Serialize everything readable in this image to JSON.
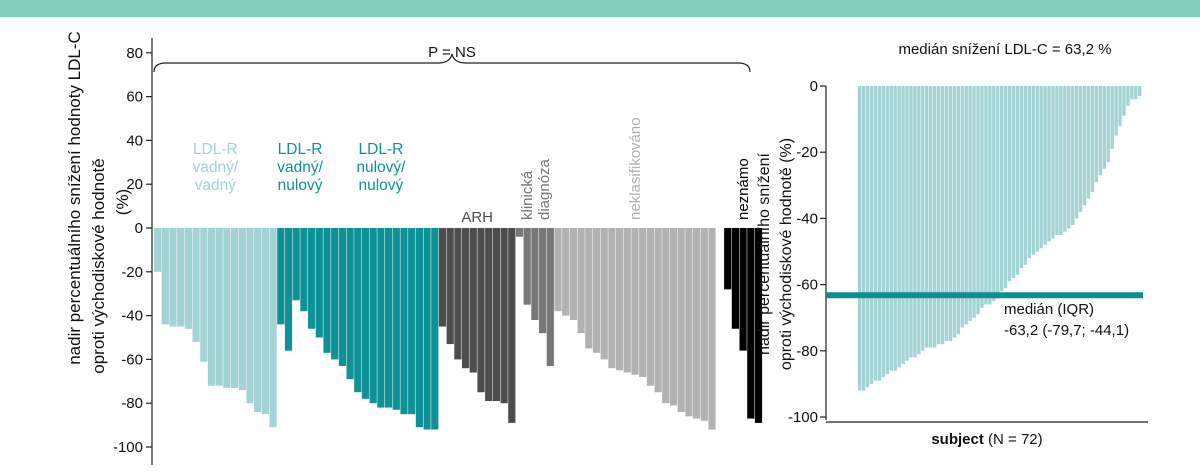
{
  "chart_data": [
    {
      "type": "bar",
      "ylabel_line1": "nadir percentuálního snížení hodnoty LDL-C",
      "ylabel_line2": "oproti východiskové hodnotě",
      "ylabel_line3": "(%)",
      "ylim": [
        -100,
        80
      ],
      "yticks": [
        80,
        60,
        40,
        20,
        0,
        -20,
        -40,
        -60,
        -80,
        -100
      ],
      "significance": "P = NS",
      "grid": false,
      "groups": [
        {
          "label_lines": [
            "LDL-R",
            "vadný/",
            "vadný"
          ],
          "color": "#a3d3d4",
          "values": [
            -20,
            -44,
            -45,
            -45,
            -46,
            -52,
            -61,
            -72,
            -72,
            -73,
            -73,
            -74,
            -80,
            -84,
            -85,
            -91
          ]
        },
        {
          "label_lines": [
            "LDL-R",
            "vadný/",
            "nulový"
          ],
          "color": "#0f9297",
          "values": [
            -44,
            -56,
            -33,
            -38,
            -46,
            -50
          ]
        },
        {
          "label_lines": [
            "LDL-R",
            "nulový/",
            "nulový"
          ],
          "color": "#0f9297",
          "values": [
            -57,
            -60,
            -63,
            -69,
            -75,
            -78,
            -80,
            -82,
            -82,
            -83,
            -85,
            -85,
            -91,
            -92,
            -92
          ]
        },
        {
          "label_lines": [
            "ARH"
          ],
          "color": "#4d4d4d",
          "values": [
            -45,
            -53,
            -60,
            -64,
            -66,
            -75,
            -79,
            -79,
            -80,
            -89
          ]
        },
        {
          "label_lines": [
            "klinická",
            "diagnóza"
          ],
          "color": "#777777",
          "values": [
            -4,
            -35,
            -42,
            -48,
            -63
          ]
        },
        {
          "label_lines": [
            "neklasifikováno"
          ],
          "color": "#b2b2b2",
          "values": [
            -38,
            -40,
            -42,
            -48,
            -55,
            -57,
            -60,
            -64,
            -65,
            -66,
            -67,
            -68,
            -72,
            -75,
            -80,
            -81,
            -84,
            -86,
            -87,
            -88,
            -92
          ]
        },
        {
          "label_lines": [
            "neznámo"
          ],
          "color": "#000000",
          "values": [
            -28,
            -46,
            -56,
            -87,
            -89
          ]
        }
      ]
    },
    {
      "type": "bar",
      "title": "medián snížení LDL-C = 63,2 %",
      "ylabel_line1": "nadir percentuálního snížení",
      "ylabel_line2": "oproti východiskové hodnotě (%)",
      "xlabel_bold": "subject",
      "xlabel_rest": "(N = 72)",
      "ylim": [
        -100,
        0
      ],
      "yticks": [
        0,
        -20,
        -40,
        -60,
        -80,
        -100
      ],
      "median_value": -63.2,
      "median_label_line1": "medián (IQR)",
      "median_label_line2": "-63,2 (-79,7; -44,1)",
      "color": "#a3d3d4",
      "median_color": "#0f8d93",
      "values": [
        -92,
        -92,
        -91,
        -90,
        -89,
        -89,
        -88,
        -87,
        -86,
        -86,
        -85,
        -84,
        -83,
        -82,
        -82,
        -81,
        -80,
        -79,
        -79,
        -79,
        -78,
        -78,
        -77,
        -77,
        -76,
        -75,
        -73,
        -72,
        -71,
        -70,
        -69,
        -67,
        -66,
        -66,
        -65,
        -64,
        -62,
        -61,
        -59,
        -58,
        -57,
        -55,
        -54,
        -52,
        -51,
        -50,
        -49,
        -48,
        -47,
        -46,
        -45,
        -45,
        -44,
        -43,
        -42,
        -40,
        -38,
        -36,
        -34,
        -32,
        -29,
        -27,
        -25,
        -23,
        -19,
        -15,
        -12,
        -9,
        -6,
        -4,
        -4,
        -3
      ]
    }
  ]
}
